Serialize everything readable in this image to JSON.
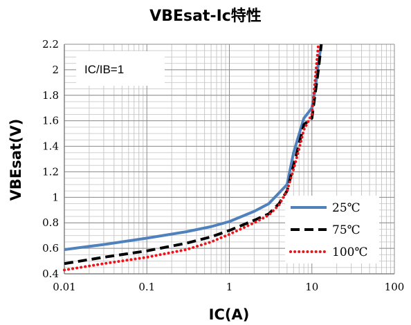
{
  "chart_data": {
    "type": "line",
    "title": "VBEsat-Ic特性",
    "xlabel": "IC(A)",
    "ylabel": "VBEsat(V)",
    "xscale": "log",
    "xlim": [
      0.01,
      100
    ],
    "ylim": [
      0.4,
      2.2
    ],
    "x_ticks": [
      "0.01",
      "0.1",
      "1",
      "10",
      "100"
    ],
    "y_ticks": [
      "0.4",
      "0.6",
      "0.8",
      "1",
      "1.2",
      "1.4",
      "1.6",
      "1.8",
      "2",
      "2.2"
    ],
    "grid": true,
    "legend_position": "bottom-right",
    "annotation": "IC/IB=1",
    "series": [
      {
        "name": "25℃",
        "color": "#4f81bd",
        "style": "solid",
        "x": [
          0.01,
          0.03,
          0.1,
          0.3,
          0.6,
          1,
          2,
          3,
          5,
          6,
          8,
          10,
          11,
          12,
          13
        ],
        "y": [
          0.59,
          0.63,
          0.68,
          0.73,
          0.77,
          0.81,
          0.89,
          0.95,
          1.1,
          1.35,
          1.62,
          1.7,
          1.85,
          2.05,
          2.2
        ]
      },
      {
        "name": "75℃",
        "color": "#000000",
        "style": "dashed",
        "x": [
          0.01,
          0.03,
          0.1,
          0.3,
          0.6,
          1,
          2,
          3,
          4,
          5,
          6,
          7,
          8,
          10,
          12,
          13
        ],
        "y": [
          0.48,
          0.53,
          0.58,
          0.64,
          0.69,
          0.74,
          0.82,
          0.87,
          0.95,
          1.05,
          1.25,
          1.42,
          1.57,
          1.62,
          2.0,
          2.2
        ]
      },
      {
        "name": "100℃",
        "color": "#e8161b",
        "style": "dotted",
        "x": [
          0.01,
          0.03,
          0.1,
          0.3,
          0.6,
          1,
          2,
          3,
          4,
          5,
          6,
          7,
          8,
          10,
          12
        ],
        "y": [
          0.43,
          0.48,
          0.53,
          0.59,
          0.65,
          0.71,
          0.8,
          0.86,
          0.94,
          1.05,
          1.22,
          1.38,
          1.53,
          1.65,
          2.2
        ]
      }
    ]
  }
}
